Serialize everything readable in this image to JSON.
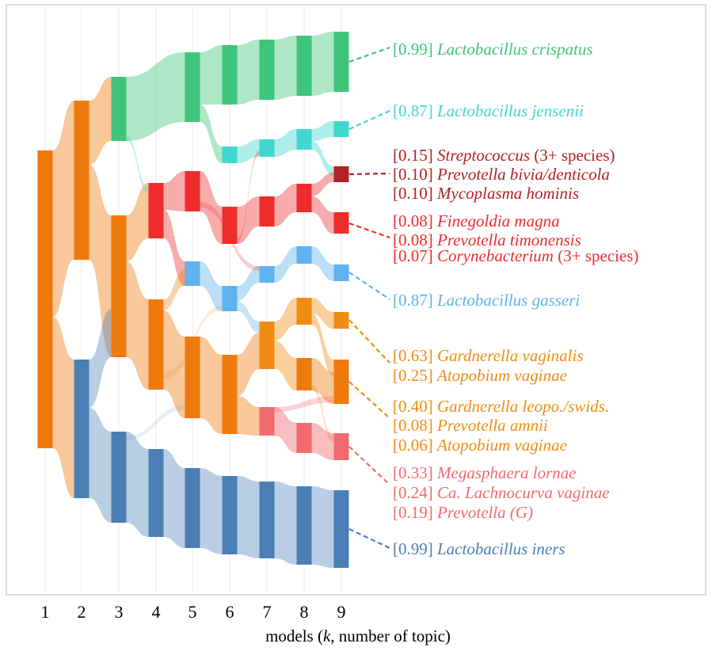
{
  "colors": {
    "crispatus": "#3fc57a",
    "jensenii": "#3fd7cf",
    "pathogen_dark": "#b22222",
    "pathogen_red": "#ee2c2c",
    "gasseri": "#5fb2ee",
    "gardnerella": "#f08c12",
    "orange_dark": "#ee7a0e",
    "megasphaera": "#f16a70",
    "iners": "#4a7fb5"
  },
  "axis": {
    "ticks": [
      "1",
      "2",
      "3",
      "4",
      "5",
      "6",
      "7",
      "8",
      "9"
    ],
    "label_prefix": "models (",
    "label_k": "k",
    "label_suffix": ", number of topic)"
  },
  "labels": [
    {
      "id": "crispatus",
      "color": "#3fc57a",
      "lines": [
        {
          "score": "[0.99]",
          "name": "Lactobacillus crispatus",
          "suffix": ""
        }
      ]
    },
    {
      "id": "jensenii",
      "color": "#3fd7cf",
      "lines": [
        {
          "score": "[0.87]",
          "name": "Lactobacillus jensenii",
          "suffix": ""
        }
      ]
    },
    {
      "id": "strep",
      "color": "#b22222",
      "lines": [
        {
          "score": "[0.15]",
          "name": "Streptococcus",
          "suffix": " (3+ species)"
        },
        {
          "score": "[0.10]",
          "name": "Prevotella bivia/denticola",
          "suffix": ""
        },
        {
          "score": "[0.10]",
          "name": "Mycoplasma hominis",
          "suffix": ""
        }
      ]
    },
    {
      "id": "finegoldia",
      "color": "#ee2c2c",
      "lines": [
        {
          "score": "[0.08]",
          "name": "Finegoldia magna",
          "suffix": ""
        },
        {
          "score": "[0.08]",
          "name": "Prevotella timonensis",
          "suffix": ""
        },
        {
          "score": "[0.07]",
          "name": "Corynebacterium",
          "suffix": " (3+ species)"
        }
      ]
    },
    {
      "id": "gasseri",
      "color": "#5fb2ee",
      "lines": [
        {
          "score": "[0.87]",
          "name": "Lactobacillus gasseri",
          "suffix": ""
        }
      ]
    },
    {
      "id": "gardnerella",
      "color": "#f08c12",
      "lines": [
        {
          "score": "[0.63]",
          "name": "Gardnerella vaginalis",
          "suffix": ""
        },
        {
          "score": "[0.25]",
          "name": "Atopobium vaginae",
          "suffix": ""
        }
      ]
    },
    {
      "id": "leopoldii",
      "color": "#f08c12",
      "lines": [
        {
          "score": "[0.40]",
          "name": "Gardnerella leopo./swids.",
          "suffix": ""
        },
        {
          "score": "[0.08]",
          "name": "Prevotella amnii",
          "suffix": ""
        },
        {
          "score": "[0.06]",
          "name": "Atopobium vaginae",
          "suffix": ""
        }
      ]
    },
    {
      "id": "megasphaera",
      "color": "#f16a70",
      "lines": [
        {
          "score": "[0.33]",
          "name": "Megasphaera lornae",
          "suffix": ""
        },
        {
          "score": "[0.24]",
          "name": "Ca. Lachnocurva vaginae",
          "suffix": ""
        },
        {
          "score": "[0.19]",
          "name": "Prevotella (G)",
          "suffix": ""
        }
      ]
    },
    {
      "id": "iners",
      "color": "#4a7fb5",
      "lines": [
        {
          "score": "[0.99]",
          "name": "Lactobacillus iners",
          "suffix": ""
        }
      ]
    }
  ]
}
